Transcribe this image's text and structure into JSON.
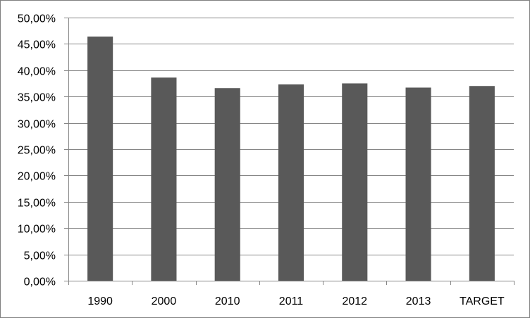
{
  "chart_data": {
    "type": "bar",
    "title": "",
    "xlabel": "",
    "ylabel": "",
    "categories": [
      "1990",
      "2000",
      "2010",
      "2011",
      "2012",
      "2013",
      "TARGET"
    ],
    "values": [
      46.4,
      38.6,
      36.6,
      37.3,
      37.5,
      36.7,
      37.0
    ],
    "ylim": [
      0,
      50
    ],
    "yticks": [
      0,
      5,
      10,
      15,
      20,
      25,
      30,
      35,
      40,
      45,
      50
    ],
    "ytick_labels": [
      "0,00%",
      "5,00%",
      "10,00%",
      "15,00%",
      "20,00%",
      "25,00%",
      "30,00%",
      "35,00%",
      "40,00%",
      "45,00%",
      "50,00%"
    ],
    "grid": true,
    "legend": "none",
    "bar_color": "#595959",
    "grid_color": "#868686"
  }
}
